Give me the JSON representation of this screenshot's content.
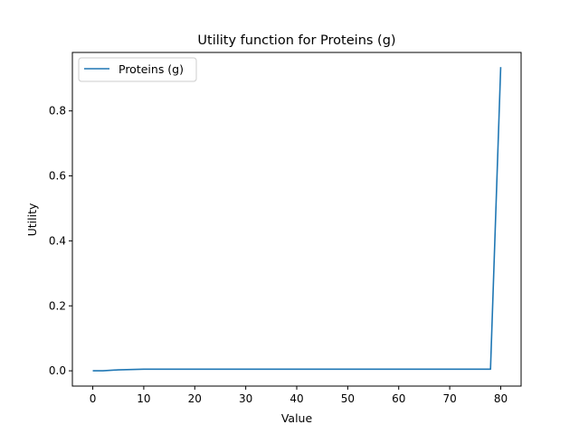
{
  "chart_data": {
    "type": "line",
    "title": "Utility function for Proteins (g)",
    "xlabel": "Value",
    "ylabel": "Utility",
    "xlim": [
      -4,
      84
    ],
    "ylim": [
      -0.047,
      0.98
    ],
    "xticks": [
      0,
      10,
      20,
      30,
      40,
      50,
      60,
      70,
      80
    ],
    "yticks": [
      0.0,
      0.2,
      0.4,
      0.6,
      0.8
    ],
    "ytick_labels": [
      "0.0",
      "0.2",
      "0.4",
      "0.6",
      "0.8"
    ],
    "grid": false,
    "legend": {
      "position": "top-left",
      "entries": [
        "Proteins (g)"
      ]
    },
    "series": [
      {
        "name": "Proteins (g)",
        "color": "#1f77b4",
        "x": [
          0,
          2,
          5,
          10,
          20,
          30,
          40,
          50,
          60,
          70,
          78,
          80
        ],
        "y": [
          0.0,
          0.0,
          0.003,
          0.005,
          0.005,
          0.005,
          0.005,
          0.005,
          0.005,
          0.005,
          0.005,
          0.935
        ]
      }
    ]
  }
}
